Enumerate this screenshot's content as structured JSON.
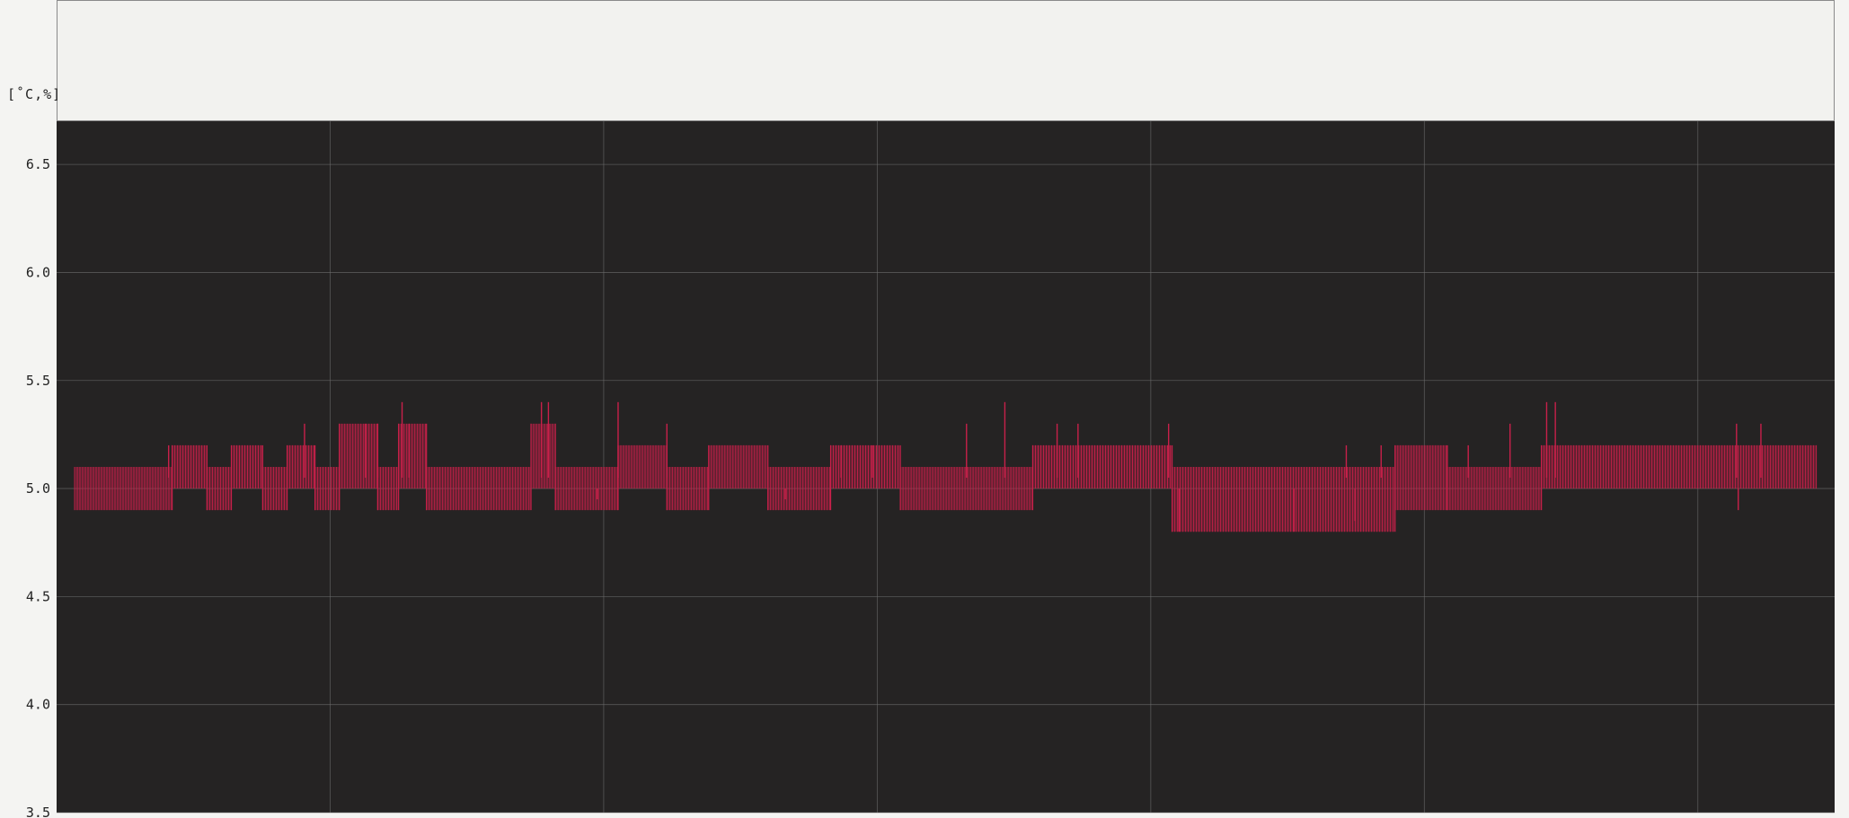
{
  "chart_data": {
    "type": "line",
    "title": "",
    "xlabel": "",
    "ylabel": "[˚C,%]",
    "ylim": [
      3.5,
      6.7
    ],
    "y_ticks": [
      "6.5",
      "6.0",
      "5.5",
      "5.0",
      "4.5",
      "4.0",
      "3.5"
    ],
    "y_tick_values": [
      6.5,
      6.0,
      5.5,
      5.0,
      4.5,
      3.9999,
      3.5
    ],
    "x_gridlines": 7,
    "grid": true,
    "colors": {
      "plot_bg": "#252323",
      "series": "#c8204a",
      "grid": "#6e6e6e"
    },
    "series": [
      {
        "name": "",
        "segments": [
          {
            "x0": 0.0,
            "x1": 0.056,
            "lo": 4.9,
            "hi": 5.1
          },
          {
            "x0": 0.056,
            "x1": 0.076,
            "lo": 5.0,
            "hi": 5.2
          },
          {
            "x0": 0.076,
            "x1": 0.09,
            "lo": 4.9,
            "hi": 5.1
          },
          {
            "x0": 0.09,
            "x1": 0.108,
            "lo": 5.0,
            "hi": 5.2
          },
          {
            "x0": 0.108,
            "x1": 0.122,
            "lo": 4.9,
            "hi": 5.1
          },
          {
            "x0": 0.122,
            "x1": 0.138,
            "lo": 5.0,
            "hi": 5.2
          },
          {
            "x0": 0.138,
            "x1": 0.152,
            "lo": 4.9,
            "hi": 5.1
          },
          {
            "x0": 0.152,
            "x1": 0.174,
            "lo": 5.0,
            "hi": 5.3
          },
          {
            "x0": 0.174,
            "x1": 0.186,
            "lo": 4.9,
            "hi": 5.1
          },
          {
            "x0": 0.186,
            "x1": 0.202,
            "lo": 5.0,
            "hi": 5.3
          },
          {
            "x0": 0.202,
            "x1": 0.262,
            "lo": 4.9,
            "hi": 5.1
          },
          {
            "x0": 0.262,
            "x1": 0.276,
            "lo": 5.0,
            "hi": 5.3
          },
          {
            "x0": 0.276,
            "x1": 0.312,
            "lo": 4.9,
            "hi": 5.1
          },
          {
            "x0": 0.312,
            "x1": 0.34,
            "lo": 5.0,
            "hi": 5.2
          },
          {
            "x0": 0.34,
            "x1": 0.364,
            "lo": 4.9,
            "hi": 5.1
          },
          {
            "x0": 0.364,
            "x1": 0.398,
            "lo": 5.0,
            "hi": 5.2
          },
          {
            "x0": 0.398,
            "x1": 0.434,
            "lo": 4.9,
            "hi": 5.1
          },
          {
            "x0": 0.434,
            "x1": 0.474,
            "lo": 5.0,
            "hi": 5.2
          },
          {
            "x0": 0.474,
            "x1": 0.55,
            "lo": 4.9,
            "hi": 5.1
          },
          {
            "x0": 0.55,
            "x1": 0.63,
            "lo": 5.0,
            "hi": 5.2
          },
          {
            "x0": 0.63,
            "x1": 0.758,
            "lo": 4.8,
            "hi": 5.1
          },
          {
            "x0": 0.758,
            "x1": 0.788,
            "lo": 4.9,
            "hi": 5.2
          },
          {
            "x0": 0.788,
            "x1": 0.842,
            "lo": 4.9,
            "hi": 5.1
          },
          {
            "x0": 0.842,
            "x1": 1.0,
            "lo": 5.0,
            "hi": 5.2
          }
        ],
        "spikes": [
          {
            "x": 0.054,
            "y": 5.2
          },
          {
            "x": 0.132,
            "y": 5.3
          },
          {
            "x": 0.167,
            "y": 5.3
          },
          {
            "x": 0.174,
            "y": 5.3
          },
          {
            "x": 0.188,
            "y": 5.4
          },
          {
            "x": 0.192,
            "y": 5.3
          },
          {
            "x": 0.268,
            "y": 5.4
          },
          {
            "x": 0.272,
            "y": 5.4
          },
          {
            "x": 0.312,
            "y": 5.4
          },
          {
            "x": 0.34,
            "y": 5.3
          },
          {
            "x": 0.44,
            "y": 5.2
          },
          {
            "x": 0.458,
            "y": 5.2
          },
          {
            "x": 0.512,
            "y": 5.3
          },
          {
            "x": 0.534,
            "y": 5.4
          },
          {
            "x": 0.564,
            "y": 5.3
          },
          {
            "x": 0.576,
            "y": 5.3
          },
          {
            "x": 0.628,
            "y": 5.3
          },
          {
            "x": 0.73,
            "y": 5.2
          },
          {
            "x": 0.75,
            "y": 5.2
          },
          {
            "x": 0.8,
            "y": 5.2
          },
          {
            "x": 0.824,
            "y": 5.3
          },
          {
            "x": 0.845,
            "y": 5.4
          },
          {
            "x": 0.85,
            "y": 5.4
          },
          {
            "x": 0.954,
            "y": 5.3
          },
          {
            "x": 0.968,
            "y": 5.3
          }
        ],
        "dips": [
          {
            "x": 0.3,
            "y": 4.95
          },
          {
            "x": 0.408,
            "y": 4.95
          },
          {
            "x": 0.634,
            "y": 4.8
          },
          {
            "x": 0.7,
            "y": 4.8
          },
          {
            "x": 0.735,
            "y": 4.85
          },
          {
            "x": 0.955,
            "y": 4.9
          }
        ]
      }
    ]
  }
}
